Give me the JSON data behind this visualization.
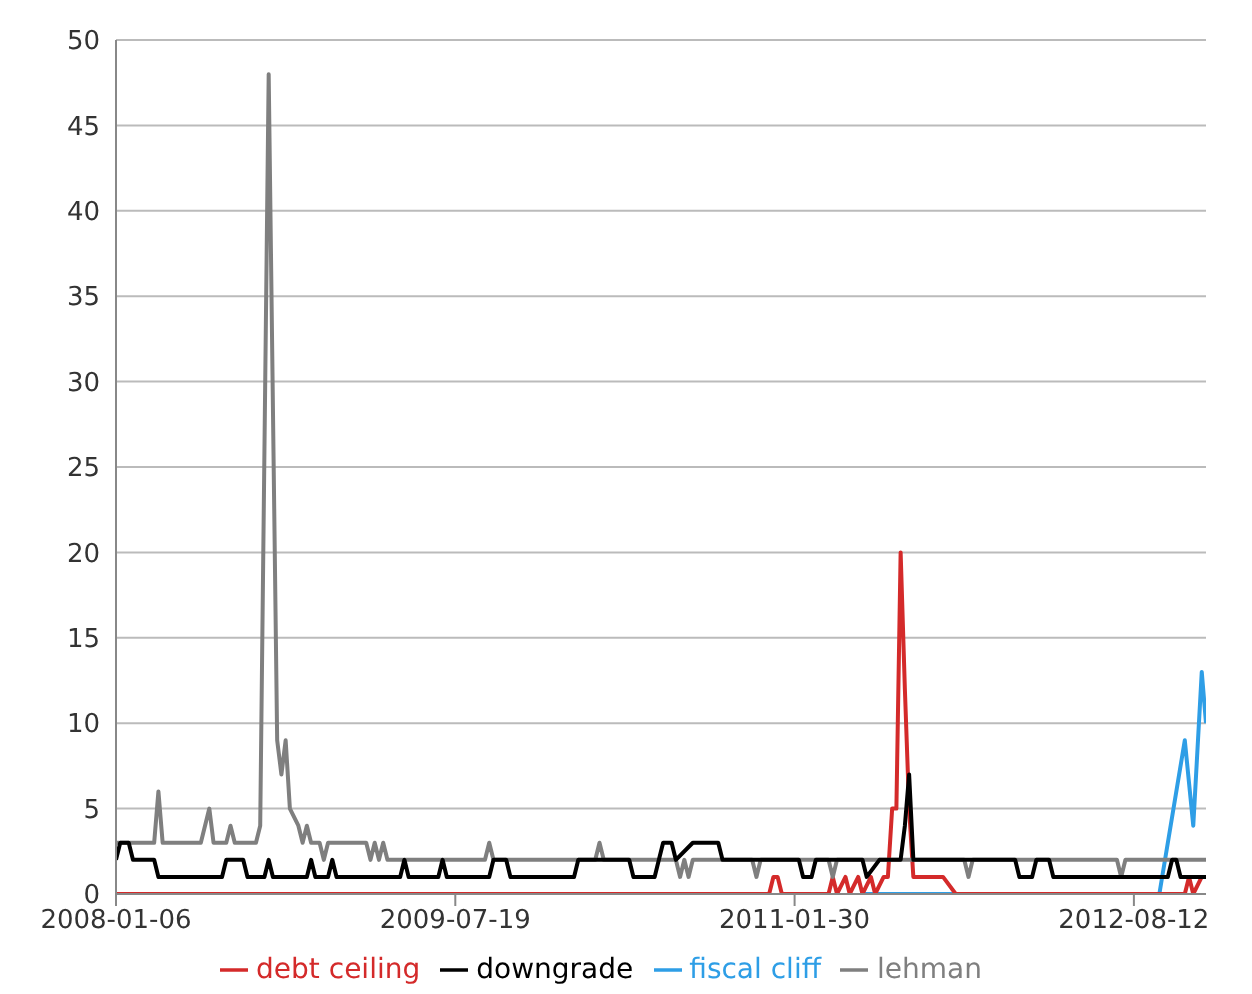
{
  "chart_data": {
    "type": "line",
    "xlim": [
      "2008-01-06",
      "2012-12-09"
    ],
    "xticks": [
      "2008-01-06",
      "2009-07-19",
      "2011-01-30",
      "2012-08-12"
    ],
    "ylim": [
      0,
      50
    ],
    "yticks": [
      0,
      5,
      10,
      15,
      20,
      25,
      30,
      35,
      40,
      45,
      50
    ],
    "grid": "y",
    "legend": "bottom",
    "marker": "none",
    "line_style": "solid",
    "series": [
      {
        "name": "fiscal cliff",
        "color": "#2e9ee6",
        "x": [
          "2011-05-22",
          "2012-09-23",
          "2012-11-04",
          "2012-11-18",
          "2012-12-02",
          "2012-12-09"
        ],
        "values": [
          0,
          0,
          9,
          4,
          13,
          10
        ]
      },
      {
        "name": "debt ceiling",
        "color": "#d42a2a",
        "x": [
          "2008-01-06",
          "2010-12-19",
          "2010-12-26",
          "2011-01-02",
          "2011-01-09",
          "2011-03-27",
          "2011-04-03",
          "2011-04-10",
          "2011-04-24",
          "2011-05-01",
          "2011-05-15",
          "2011-05-22",
          "2011-06-05",
          "2011-06-12",
          "2011-06-26",
          "2011-07-03",
          "2011-07-10",
          "2011-07-17",
          "2011-07-24",
          "2011-07-31",
          "2011-08-07",
          "2011-08-14",
          "2011-10-02",
          "2011-10-23",
          "2012-11-04",
          "2012-11-11",
          "2012-11-18",
          "2012-12-02",
          "2012-12-09"
        ],
        "values": [
          0,
          0,
          1,
          1,
          0,
          0,
          1,
          0,
          1,
          0,
          1,
          0,
          1,
          0,
          1,
          1,
          5,
          5,
          20,
          12,
          5,
          1,
          1,
          0,
          0,
          1,
          0,
          1,
          1
        ]
      },
      {
        "name": "lehman",
        "color": "#7f7f7f",
        "x": [
          "2008-01-06",
          "2008-03-09",
          "2008-03-16",
          "2008-03-23",
          "2008-05-25",
          "2008-06-08",
          "2008-06-15",
          "2008-07-06",
          "2008-07-13",
          "2008-07-20",
          "2008-08-24",
          "2008-08-31",
          "2008-09-14",
          "2008-09-28",
          "2008-10-05",
          "2008-10-12",
          "2008-10-19",
          "2008-11-02",
          "2008-11-09",
          "2008-11-16",
          "2008-11-23",
          "2008-12-07",
          "2008-12-14",
          "2008-12-21",
          "2009-02-22",
          "2009-03-01",
          "2009-03-08",
          "2009-03-15",
          "2009-03-22",
          "2009-03-29",
          "2009-09-06",
          "2009-09-13",
          "2009-09-20",
          "2010-03-07",
          "2010-03-14",
          "2010-03-21",
          "2010-07-18",
          "2010-07-25",
          "2010-08-01",
          "2010-08-08",
          "2010-08-15",
          "2010-11-21",
          "2010-11-28",
          "2010-12-05",
          "2011-03-27",
          "2011-04-03",
          "2011-04-10",
          "2011-11-06",
          "2011-11-13",
          "2011-11-20",
          "2012-07-15",
          "2012-07-22",
          "2012-07-29",
          "2012-12-09"
        ],
        "values": [
          3,
          3,
          6,
          3,
          3,
          5,
          3,
          3,
          4,
          3,
          3,
          4,
          48,
          9,
          7,
          9,
          5,
          4,
          3,
          4,
          3,
          3,
          2,
          3,
          3,
          2,
          3,
          2,
          3,
          2,
          2,
          3,
          2,
          2,
          3,
          2,
          2,
          1,
          2,
          1,
          2,
          2,
          1,
          2,
          2,
          1,
          2,
          2,
          1,
          2,
          2,
          1,
          2,
          2
        ]
      },
      {
        "name": "downgrade",
        "color": "#000000",
        "x": [
          "2008-01-06",
          "2008-01-13",
          "2008-01-27",
          "2008-02-03",
          "2008-03-09",
          "2008-03-16",
          "2008-06-29",
          "2008-07-06",
          "2008-08-03",
          "2008-08-10",
          "2008-09-07",
          "2008-09-14",
          "2008-09-21",
          "2008-11-16",
          "2008-11-23",
          "2008-11-30",
          "2008-12-21",
          "2008-12-28",
          "2009-01-04",
          "2009-04-19",
          "2009-04-26",
          "2009-05-03",
          "2009-06-21",
          "2009-06-28",
          "2009-07-05",
          "2009-09-13",
          "2009-09-20",
          "2009-10-11",
          "2009-10-18",
          "2010-01-31",
          "2010-02-07",
          "2010-05-02",
          "2010-05-09",
          "2010-06-13",
          "2010-06-20",
          "2010-06-27",
          "2010-07-11",
          "2010-07-18",
          "2010-08-15",
          "2010-09-26",
          "2010-10-03",
          "2011-02-06",
          "2011-02-13",
          "2011-02-27",
          "2011-03-06",
          "2011-05-22",
          "2011-05-29",
          "2011-06-19",
          "2011-07-24",
          "2011-07-31",
          "2011-08-07",
          "2011-08-14",
          "2012-01-29",
          "2012-02-05",
          "2012-02-26",
          "2012-03-04",
          "2012-03-25",
          "2012-04-01",
          "2012-10-07",
          "2012-10-14",
          "2012-10-21",
          "2012-10-28",
          "2012-12-09"
        ],
        "values": [
          2,
          3,
          3,
          2,
          2,
          1,
          1,
          2,
          2,
          1,
          1,
          2,
          1,
          1,
          2,
          1,
          1,
          2,
          1,
          1,
          2,
          1,
          1,
          2,
          1,
          1,
          2,
          2,
          1,
          1,
          2,
          2,
          1,
          1,
          2,
          3,
          3,
          2,
          3,
          3,
          2,
          2,
          1,
          1,
          2,
          2,
          1,
          2,
          2,
          4,
          7,
          2,
          2,
          1,
          1,
          2,
          2,
          1,
          1,
          2,
          2,
          1,
          1
        ]
      }
    ]
  }
}
